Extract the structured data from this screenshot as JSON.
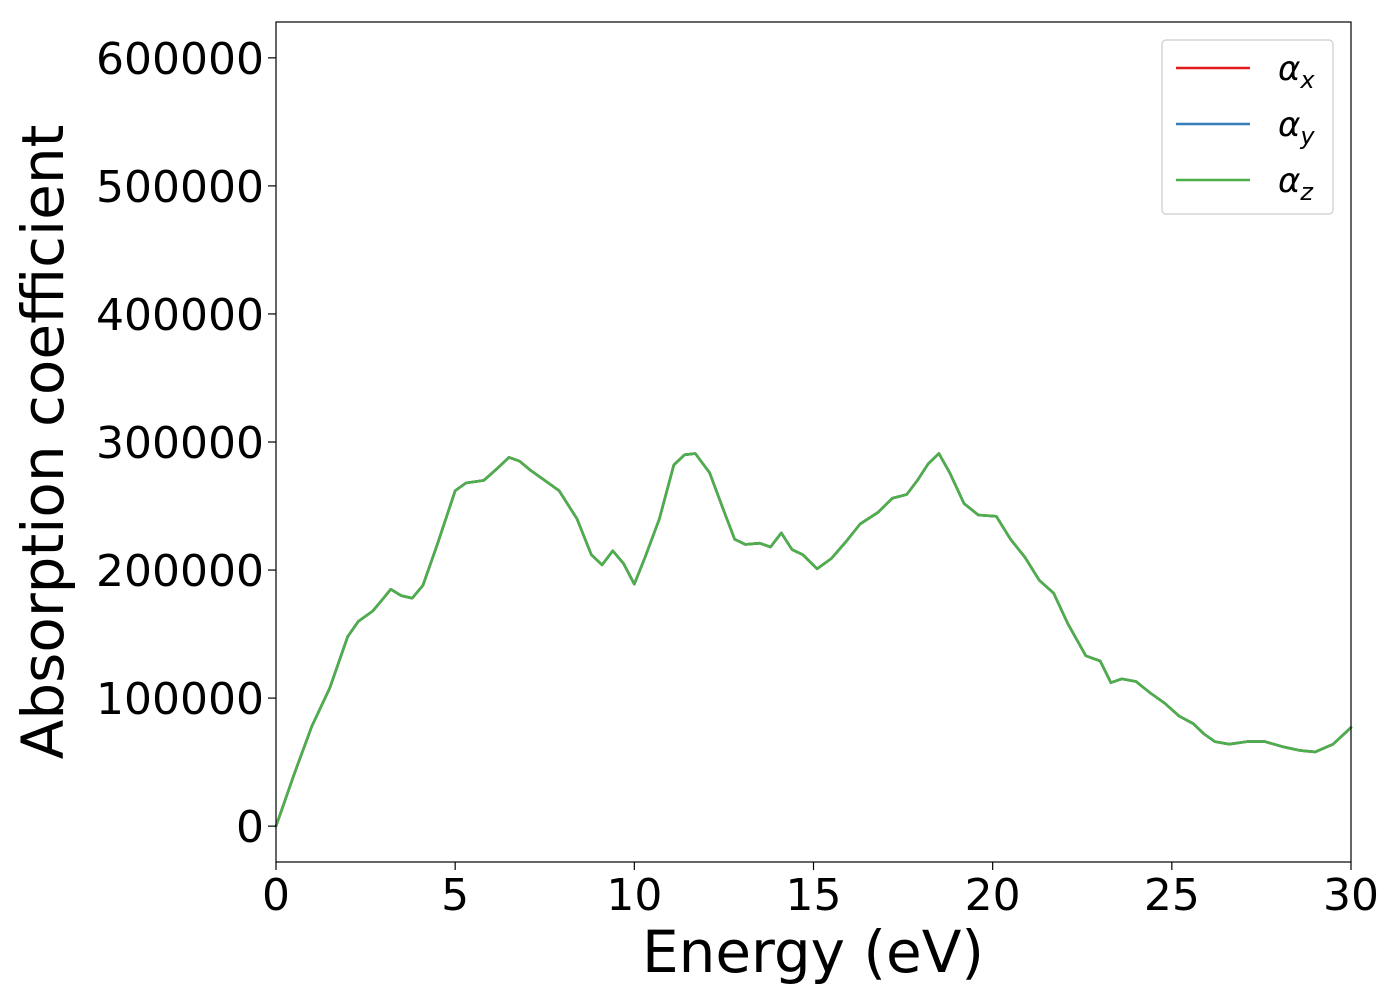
{
  "chart_data": {
    "type": "line",
    "title": "",
    "xlabel": "Energy (eV)",
    "ylabel": "Absorption coefficient",
    "xlim": [
      0,
      30
    ],
    "ylim": [
      -28000,
      628000
    ],
    "xticks": [
      0,
      5,
      10,
      15,
      20,
      25,
      30
    ],
    "xtick_labels": [
      "0",
      "5",
      "10",
      "15",
      "20",
      "25",
      "30"
    ],
    "yticks": [
      0,
      100000,
      200000,
      300000,
      400000,
      500000,
      600000
    ],
    "ytick_labels": [
      "0",
      "100000",
      "200000",
      "300000",
      "400000",
      "500000",
      "600000"
    ],
    "grid": false,
    "legend_position": "top-right",
    "x": [
      0,
      0.1,
      0.5,
      1,
      1.5,
      2,
      2.3,
      2.7,
      3,
      3.2,
      3.5,
      3.8,
      4.1,
      4.5,
      5,
      5.3,
      5.8,
      6.2,
      6.5,
      6.8,
      7.1,
      7.5,
      7.9,
      8.4,
      8.8,
      9.1,
      9.4,
      9.7,
      10,
      10.3,
      10.7,
      11.1,
      11.4,
      11.7,
      12.1,
      12.5,
      12.8,
      13.1,
      13.5,
      13.8,
      14.1,
      14.4,
      14.7,
      15.1,
      15.5,
      15.9,
      16.3,
      16.8,
      17.2,
      17.6,
      17.9,
      18.2,
      18.5,
      18.8,
      19.2,
      19.6,
      20.1,
      20.5,
      20.9,
      21.3,
      21.7,
      22.1,
      22.6,
      23,
      23.3,
      23.6,
      24,
      24.4,
      24.8,
      25.2,
      25.6,
      25.9,
      26.2,
      26.6,
      27.1,
      27.6,
      28.1,
      28.6,
      29,
      29.5,
      30
    ],
    "series": [
      {
        "name": "α",
        "sub": "x",
        "color": "#e41a1c",
        "values": [
          0,
          8000,
          40000,
          78000,
          108000,
          148000,
          160000,
          168000,
          178000,
          185000,
          180000,
          178000,
          188000,
          220000,
          262000,
          268000,
          270000,
          280000,
          288000,
          285000,
          278000,
          270000,
          262000,
          240000,
          212000,
          204000,
          215000,
          205000,
          189000,
          210000,
          240000,
          282000,
          290000,
          291000,
          276000,
          246000,
          224000,
          220000,
          221000,
          218000,
          229000,
          216000,
          212000,
          201000,
          209000,
          222000,
          236000,
          245000,
          256000,
          259000,
          270000,
          283000,
          291000,
          276000,
          252000,
          243000,
          242000,
          224000,
          210000,
          192000,
          182000,
          158000,
          133000,
          129000,
          112000,
          115000,
          113000,
          104000,
          96000,
          86000,
          80000,
          72000,
          66000,
          64000,
          66000,
          66000,
          62000,
          59000,
          58000,
          64000,
          77000
        ]
      },
      {
        "name": "α",
        "sub": "y",
        "color": "#377eb8",
        "values": [
          0,
          8000,
          40000,
          78000,
          108000,
          148000,
          160000,
          168000,
          178000,
          185000,
          180000,
          178000,
          188000,
          220000,
          262000,
          268000,
          270000,
          280000,
          288000,
          285000,
          278000,
          270000,
          262000,
          240000,
          212000,
          204000,
          215000,
          205000,
          189000,
          210000,
          240000,
          282000,
          290000,
          291000,
          276000,
          246000,
          224000,
          220000,
          221000,
          218000,
          229000,
          216000,
          212000,
          201000,
          209000,
          222000,
          236000,
          245000,
          256000,
          259000,
          270000,
          283000,
          291000,
          276000,
          252000,
          243000,
          242000,
          224000,
          210000,
          192000,
          182000,
          158000,
          133000,
          129000,
          112000,
          115000,
          113000,
          104000,
          96000,
          86000,
          80000,
          72000,
          66000,
          64000,
          66000,
          66000,
          62000,
          59000,
          58000,
          64000,
          77000
        ]
      },
      {
        "name": "α",
        "sub": "z",
        "color": "#4daf4a",
        "values": [
          0,
          8000,
          40000,
          78000,
          108000,
          148000,
          160000,
          168000,
          178000,
          185000,
          180000,
          178000,
          188000,
          220000,
          262000,
          268000,
          270000,
          280000,
          288000,
          285000,
          278000,
          270000,
          262000,
          240000,
          212000,
          204000,
          215000,
          205000,
          189000,
          210000,
          240000,
          282000,
          290000,
          291000,
          276000,
          246000,
          224000,
          220000,
          221000,
          218000,
          229000,
          216000,
          212000,
          201000,
          209000,
          222000,
          236000,
          245000,
          256000,
          259000,
          270000,
          283000,
          291000,
          276000,
          252000,
          243000,
          242000,
          224000,
          210000,
          192000,
          182000,
          158000,
          133000,
          129000,
          112000,
          115000,
          113000,
          104000,
          96000,
          86000,
          80000,
          72000,
          66000,
          64000,
          66000,
          66000,
          62000,
          59000,
          58000,
          64000,
          77000
        ]
      }
    ]
  }
}
